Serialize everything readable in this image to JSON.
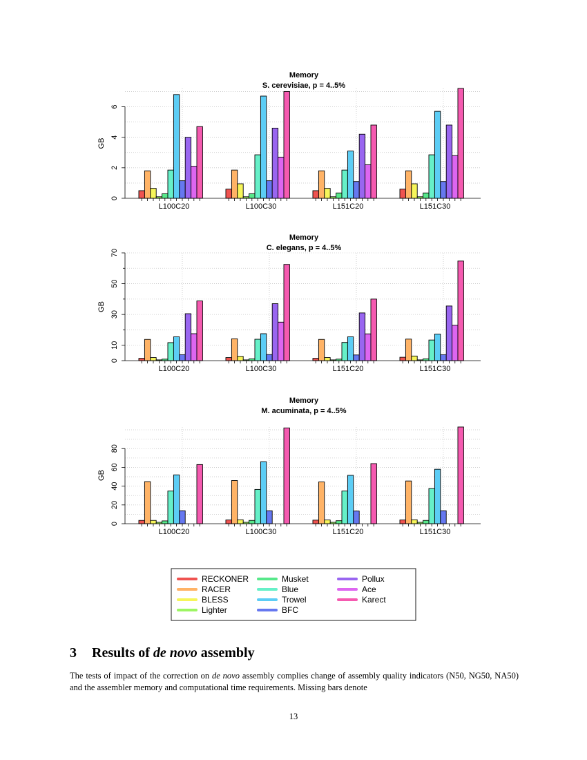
{
  "chart_data": [
    {
      "type": "bar",
      "title": "Memory",
      "subtitle": "S. cerevisiae, p = 4..5%",
      "ylabel": "GB",
      "xlabel": "",
      "ylim": [
        0,
        7.2
      ],
      "yticks": [
        0,
        2,
        4,
        6
      ],
      "categories": [
        "L100C20",
        "L100C30",
        "L151C20",
        "L151C30"
      ],
      "series": [
        {
          "name": "RECKONER",
          "values": [
            0.5,
            0.6,
            0.5,
            0.6
          ]
        },
        {
          "name": "RACER",
          "values": [
            1.8,
            1.85,
            1.8,
            1.8
          ]
        },
        {
          "name": "BLESS",
          "values": [
            0.65,
            0.95,
            0.65,
            0.95
          ]
        },
        {
          "name": "Lighter",
          "values": [
            0.1,
            0.1,
            0.1,
            0.1
          ]
        },
        {
          "name": "Musket",
          "values": [
            0.3,
            0.3,
            0.35,
            0.35
          ]
        },
        {
          "name": "Blue",
          "values": [
            1.85,
            2.85,
            1.85,
            2.85
          ]
        },
        {
          "name": "Trowel",
          "values": [
            6.8,
            6.7,
            3.1,
            5.7
          ]
        },
        {
          "name": "BFC",
          "values": [
            1.15,
            1.15,
            1.1,
            1.1
          ]
        },
        {
          "name": "Pollux",
          "values": [
            4.0,
            4.6,
            4.2,
            4.8
          ]
        },
        {
          "name": "Ace",
          "values": [
            2.1,
            2.7,
            2.2,
            2.8
          ]
        },
        {
          "name": "Karect",
          "values": [
            4.7,
            7.0,
            4.8,
            7.2
          ]
        }
      ]
    },
    {
      "type": "bar",
      "title": "Memory",
      "subtitle": "C. elegans, p = 4..5%",
      "ylabel": "GB",
      "xlabel": "",
      "ylim": [
        0,
        70
      ],
      "yticks": [
        0,
        10,
        30,
        50,
        70
      ],
      "categories": [
        "L100C20",
        "L100C30",
        "L151C20",
        "L151C30"
      ],
      "series": [
        {
          "name": "RECKONER",
          "values": [
            1.5,
            2.0,
            1.5,
            2.2
          ]
        },
        {
          "name": "RACER",
          "values": [
            13.8,
            14.2,
            13.8,
            14.0
          ]
        },
        {
          "name": "BLESS",
          "values": [
            2.0,
            2.8,
            2.0,
            3.0
          ]
        },
        {
          "name": "Lighter",
          "values": [
            0.5,
            0.5,
            0.5,
            0.5
          ]
        },
        {
          "name": "Musket",
          "values": [
            1.0,
            1.2,
            1.0,
            1.2
          ]
        },
        {
          "name": "Blue",
          "values": [
            11.7,
            13.9,
            11.8,
            13.4
          ]
        },
        {
          "name": "Trowel",
          "values": [
            15.5,
            17.5,
            15.5,
            17.3
          ]
        },
        {
          "name": "BFC",
          "values": [
            3.9,
            4.0,
            3.7,
            3.9
          ]
        },
        {
          "name": "Pollux",
          "values": [
            30.5,
            37.0,
            31.0,
            35.5
          ]
        },
        {
          "name": "Ace",
          "values": [
            17.5,
            25.0,
            17.4,
            23.0
          ]
        },
        {
          "name": "Karect",
          "values": [
            38.8,
            62.5,
            40.0,
            64.7
          ]
        }
      ]
    },
    {
      "type": "bar",
      "title": "Memory",
      "subtitle": "M. acuminata, p = 4..5%",
      "ylabel": "GB",
      "xlabel": "",
      "ylim": [
        0,
        103
      ],
      "yticks": [
        0,
        20,
        40,
        60,
        80
      ],
      "categories": [
        "L100C20",
        "L100C30",
        "L151C20",
        "L151C30"
      ],
      "series": [
        {
          "name": "RECKONER",
          "values": [
            3.5,
            4.0,
            3.8,
            4.0
          ]
        },
        {
          "name": "RACER",
          "values": [
            44.8,
            46.0,
            44.5,
            45.5
          ]
        },
        {
          "name": "BLESS",
          "values": [
            3.5,
            4.2,
            4.0,
            4.2
          ]
        },
        {
          "name": "Lighter",
          "values": [
            1.5,
            1.5,
            1.5,
            1.5
          ]
        },
        {
          "name": "Musket",
          "values": [
            3.0,
            3.5,
            3.2,
            3.5
          ]
        },
        {
          "name": "Blue",
          "values": [
            34.8,
            36.5,
            34.8,
            37.5
          ]
        },
        {
          "name": "Trowel",
          "values": [
            52.0,
            66.0,
            51.5,
            58.0
          ]
        },
        {
          "name": "BFC",
          "values": [
            13.8,
            13.8,
            13.5,
            13.8
          ]
        },
        {
          "name": "Pollux",
          "values": [
            null,
            null,
            null,
            null
          ]
        },
        {
          "name": "Ace",
          "values": [
            null,
            null,
            null,
            null
          ]
        },
        {
          "name": "Karect",
          "values": [
            63.0,
            102.0,
            64.0,
            103.0
          ]
        }
      ]
    }
  ],
  "legend": {
    "items": [
      {
        "name": "RECKONER",
        "color": "#ef5350"
      },
      {
        "name": "RACER",
        "color": "#ffb366"
      },
      {
        "name": "BLESS",
        "color": "#f6f55a"
      },
      {
        "name": "Lighter",
        "color": "#9df562"
      },
      {
        "name": "Musket",
        "color": "#57e88a"
      },
      {
        "name": "Blue",
        "color": "#66f0c8"
      },
      {
        "name": "Trowel",
        "color": "#5ccdf5"
      },
      {
        "name": "BFC",
        "color": "#6678f0"
      },
      {
        "name": "Pollux",
        "color": "#9966f0"
      },
      {
        "name": "Ace",
        "color": "#dd66f0"
      },
      {
        "name": "Karect",
        "color": "#f55ab0"
      }
    ]
  },
  "section": {
    "number": "3",
    "title_pre": "Results of",
    "title_em": "de novo",
    "title_post": "assembly"
  },
  "paragraph": {
    "part1": "The tests of impact of the correction on",
    "em": "de novo",
    "part2": "assembly complies change of assembly quality indicators (N50, NG50, NA50) and the assembler memory and computational time requirements. Missing bars denote"
  },
  "page_number": "13"
}
